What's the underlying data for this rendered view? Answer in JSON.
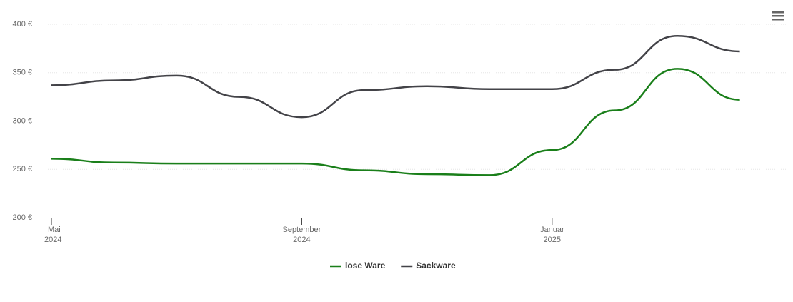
{
  "chart_data": {
    "type": "line",
    "x": [
      "2024-05",
      "2024-06",
      "2024-07",
      "2024-08",
      "2024-09",
      "2024-10",
      "2024-11",
      "2024-12",
      "2025-01",
      "2025-02",
      "2025-03",
      "2025-04"
    ],
    "series": [
      {
        "name": "lose Ware",
        "color": "#1a7f1a",
        "values": [
          261,
          257,
          256,
          256,
          256,
          249,
          245,
          244,
          270,
          311,
          354,
          322
        ]
      },
      {
        "name": "Sackware",
        "color": "#434348",
        "values": [
          337,
          342,
          347,
          325,
          304,
          332,
          336,
          333,
          333,
          353,
          388,
          372
        ]
      }
    ],
    "ylim": [
      200,
      400
    ],
    "yticks": [
      {
        "value": 200,
        "label": "200 €"
      },
      {
        "value": 250,
        "label": "250 €"
      },
      {
        "value": 300,
        "label": "300 €"
      },
      {
        "value": 350,
        "label": "350 €"
      },
      {
        "value": 400,
        "label": "400 €"
      }
    ],
    "xticks": [
      {
        "value": "2024-05",
        "label": [
          "Mai",
          "2024"
        ]
      },
      {
        "value": "2024-09",
        "label": [
          "September",
          "2024"
        ]
      },
      {
        "value": "2025-01",
        "label": [
          "Januar",
          "2025"
        ]
      }
    ],
    "grid": true,
    "legend": "bottom"
  }
}
